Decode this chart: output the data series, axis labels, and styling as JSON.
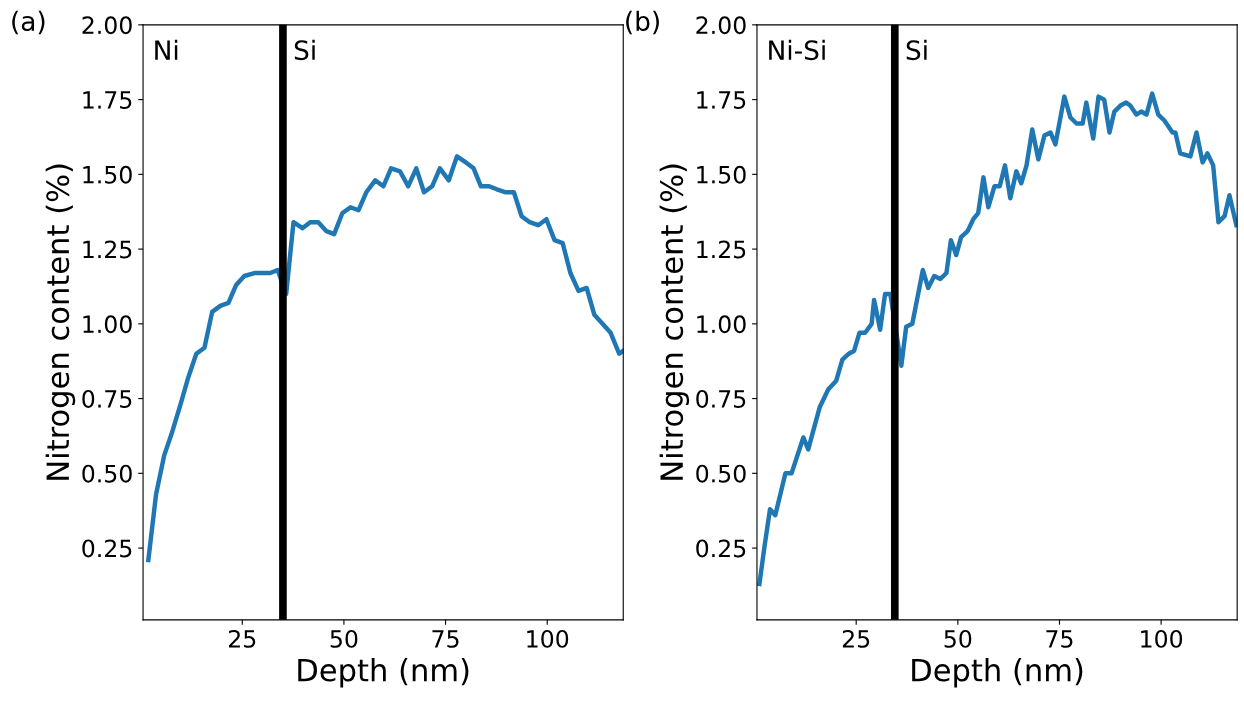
{
  "chart_data": [
    {
      "type": "line",
      "title": "(a)",
      "xlabel": "Depth (nm)",
      "ylabel": "Nitrogen content (%)",
      "xlim": [
        0.6,
        118.7
      ],
      "xticks": [
        25,
        50,
        75,
        100
      ],
      "ylim": [
        0.01,
        2.0
      ],
      "yticks": [
        0.25,
        {
          "value": 0.5,
          "label": "0.50"
        },
        0.75,
        {
          "value": 1.0,
          "label": "1.00"
        },
        1.25,
        {
          "value": 1.5,
          "label": "1.50"
        },
        1.75,
        {
          "value": 2.0,
          "label": "2.00"
        }
      ],
      "grid": false,
      "legend": false,
      "marker": "none",
      "line_style": "solid",
      "annotations": [
        "Ni",
        "Si"
      ],
      "ref_lines": [
        {
          "axis": "x",
          "value": 35,
          "color": "#000000"
        }
      ],
      "series": [
        {
          "color": "#1f77b4",
          "x": [
            1.9,
            3.8,
            5.8,
            7.8,
            9.8,
            11.7,
            13.7,
            15.7,
            17.6,
            19.6,
            21.6,
            23.5,
            25.5,
            28.0,
            29.9,
            31.9,
            33.7,
            35.8,
            37.6,
            39.8,
            41.7,
            43.7,
            45.7,
            47.6,
            49.6,
            51.6,
            53.6,
            55.5,
            57.7,
            59.7,
            61.6,
            63.8,
            65.8,
            67.8,
            69.7,
            71.7,
            73.6,
            75.8,
            77.8,
            80.0,
            81.9,
            83.7,
            85.7,
            87.6,
            89.8,
            91.8,
            93.7,
            95.7,
            97.8,
            99.8,
            101.8,
            103.8,
            105.7,
            107.7,
            109.7,
            111.6,
            113.6,
            115.6,
            117.7,
            118.7
          ],
          "values": [
            0.21,
            0.43,
            0.56,
            0.64,
            0.73,
            0.82,
            0.9,
            0.92,
            1.04,
            1.06,
            1.07,
            1.13,
            1.16,
            1.17,
            1.17,
            1.17,
            1.18,
            1.1,
            1.34,
            1.32,
            1.34,
            1.34,
            1.31,
            1.3,
            1.37,
            1.39,
            1.38,
            1.44,
            1.48,
            1.46,
            1.52,
            1.51,
            1.46,
            1.52,
            1.44,
            1.46,
            1.52,
            1.48,
            1.56,
            1.54,
            1.52,
            1.46,
            1.46,
            1.45,
            1.44,
            1.44,
            1.36,
            1.34,
            1.33,
            1.35,
            1.28,
            1.27,
            1.17,
            1.11,
            1.12,
            1.03,
            1.0,
            0.97,
            0.9,
            0.91
          ]
        }
      ]
    },
    {
      "type": "line",
      "title": "(b)",
      "xlabel": "Depth (nm)",
      "ylabel": "Nitrogen content (%)",
      "xlim": [
        0.6,
        118.7
      ],
      "xticks": [
        25,
        50,
        75,
        100
      ],
      "ylim": [
        0.01,
        2.0
      ],
      "yticks": [
        0.25,
        {
          "value": 0.5,
          "label": "0.50"
        },
        0.75,
        {
          "value": 1.0,
          "label": "1.00"
        },
        1.25,
        {
          "value": 1.5,
          "label": "1.50"
        },
        1.75,
        {
          "value": 2.0,
          "label": "2.00"
        }
      ],
      "grid": false,
      "legend": false,
      "marker": "none",
      "line_style": "solid",
      "annotations": [
        "Ni-Si",
        "Si"
      ],
      "ref_lines": [
        {
          "axis": "x",
          "value": 34.5,
          "color": "#000000"
        }
      ],
      "series": [
        {
          "color": "#1f77b4",
          "x": [
            1.2,
            2.4,
            3.8,
            5.1,
            7.6,
            9.1,
            12.0,
            13.2,
            16.0,
            18.1,
            20.1,
            21.6,
            23.2,
            24.5,
            25.8,
            27.2,
            28.8,
            29.4,
            30.9,
            32.1,
            33.4,
            36.1,
            37.3,
            38.8,
            41.4,
            42.7,
            44.2,
            45.7,
            47.2,
            48.3,
            49.6,
            50.8,
            52.4,
            53.8,
            55.0,
            56.3,
            57.5,
            59.0,
            60.3,
            61.6,
            62.9,
            64.4,
            65.6,
            66.9,
            68.3,
            69.8,
            71.3,
            72.8,
            74.0,
            76.2,
            77.7,
            79.2,
            80.7,
            81.6,
            83.3,
            84.6,
            86.0,
            87.3,
            88.5,
            90.0,
            91.4,
            92.4,
            93.9,
            95.1,
            96.4,
            97.8,
            99.3,
            100.8,
            102.8,
            103.5,
            104.7,
            107.2,
            108.7,
            110.2,
            111.4,
            112.8,
            114.1,
            115.6,
            116.8,
            118.5
          ],
          "values": [
            0.13,
            0.25,
            0.38,
            0.36,
            0.5,
            0.5,
            0.62,
            0.58,
            0.72,
            0.78,
            0.81,
            0.88,
            0.9,
            0.91,
            0.97,
            0.97,
            1.0,
            1.08,
            0.98,
            1.1,
            1.1,
            0.86,
            0.99,
            1.0,
            1.18,
            1.12,
            1.16,
            1.15,
            1.17,
            1.28,
            1.23,
            1.29,
            1.31,
            1.35,
            1.37,
            1.49,
            1.39,
            1.46,
            1.46,
            1.53,
            1.42,
            1.51,
            1.47,
            1.53,
            1.65,
            1.55,
            1.63,
            1.64,
            1.6,
            1.76,
            1.69,
            1.67,
            1.67,
            1.74,
            1.62,
            1.76,
            1.75,
            1.64,
            1.71,
            1.73,
            1.74,
            1.73,
            1.7,
            1.71,
            1.7,
            1.77,
            1.7,
            1.68,
            1.64,
            1.64,
            1.57,
            1.56,
            1.64,
            1.54,
            1.57,
            1.53,
            1.34,
            1.36,
            1.43,
            1.33
          ]
        }
      ]
    }
  ]
}
